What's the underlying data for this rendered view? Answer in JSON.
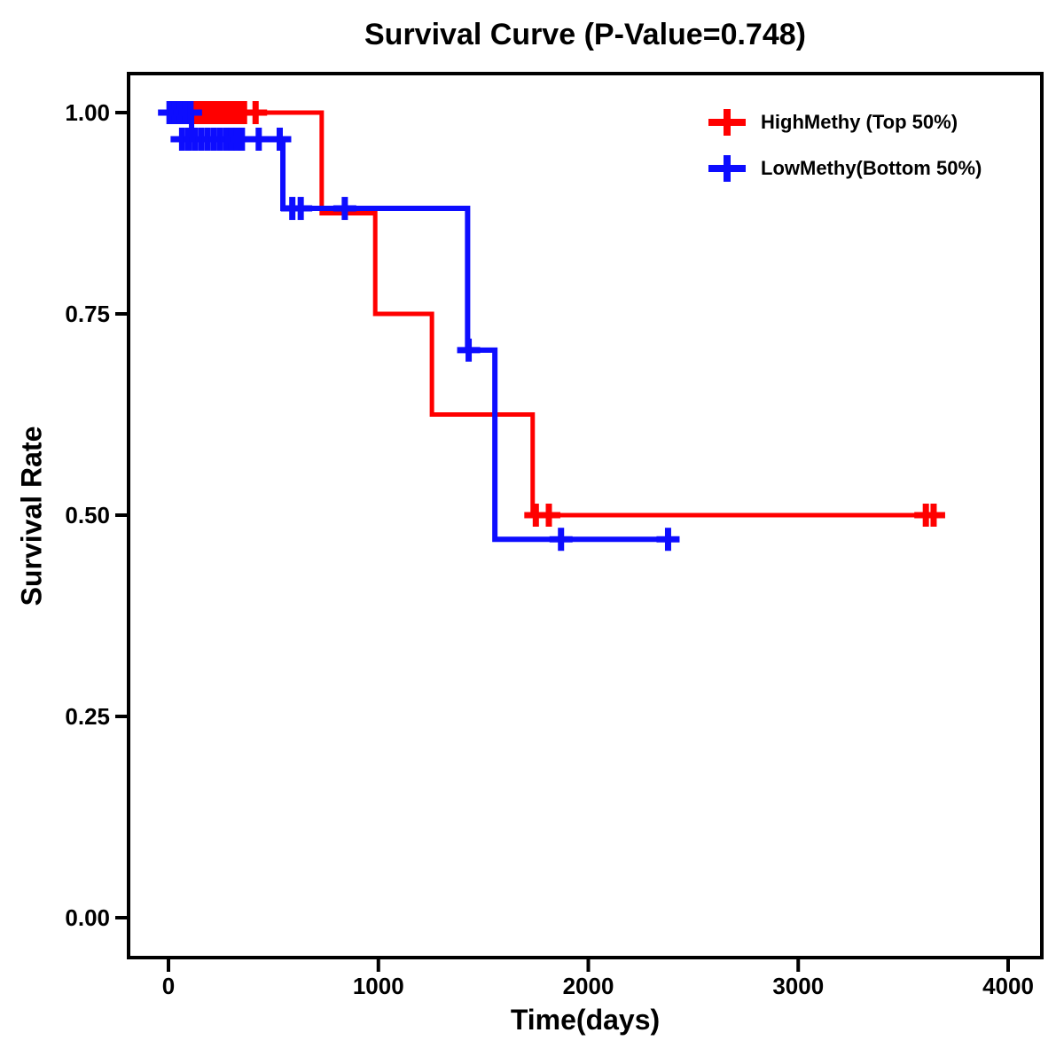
{
  "title": "Survival Curve (P-Value=0.748)",
  "axes": {
    "x": {
      "label": "Time(days)",
      "ticks": [
        {
          "value": 0,
          "label": "0"
        },
        {
          "value": 1000,
          "label": "1000"
        },
        {
          "value": 2000,
          "label": "2000"
        },
        {
          "value": 3000,
          "label": "3000"
        },
        {
          "value": 4000,
          "label": "4000"
        }
      ]
    },
    "y": {
      "label": "Survival Rate",
      "ticks": [
        {
          "value": 1.0,
          "label": "1.00"
        },
        {
          "value": 0.75,
          "label": "0.75"
        },
        {
          "value": 0.5,
          "label": "0.50"
        },
        {
          "value": 0.25,
          "label": "0.25"
        },
        {
          "value": 0.0,
          "label": "0.00"
        }
      ]
    }
  },
  "legend": [
    {
      "label": "HighMethy (Top 50%)",
      "color": "#FF0000",
      "marker": "plus-icon"
    },
    {
      "label": "LowMethy(Bottom 50%)",
      "color": "#0D0DFF",
      "marker": "plus-icon"
    }
  ],
  "chart_data": {
    "type": "line",
    "subtype": "kaplan-meier-step",
    "title": "Survival Curve (P-Value=0.748)",
    "p_value": 0.748,
    "xlabel": "Time(days)",
    "ylabel": "Survival Rate",
    "xlim": [
      0,
      4000
    ],
    "ylim": [
      0.0,
      1.0
    ],
    "grid": false,
    "legend_position": "top-right",
    "series": [
      {
        "name": "HighMethy (Top 50%)",
        "color": "#FF0000",
        "steps": [
          [
            0,
            1.0
          ],
          [
            730,
            0.875
          ],
          [
            985,
            0.75
          ],
          [
            1255,
            0.625
          ],
          [
            1735,
            0.5
          ]
        ],
        "end_time": 3690,
        "censor_marks": [
          [
            65,
            1.0
          ],
          [
            90,
            1.0
          ],
          [
            115,
            1.0
          ],
          [
            140,
            1.0
          ],
          [
            165,
            1.0
          ],
          [
            190,
            1.0
          ],
          [
            215,
            1.0
          ],
          [
            240,
            1.0
          ],
          [
            265,
            1.0
          ],
          [
            290,
            1.0
          ],
          [
            312,
            1.0
          ],
          [
            335,
            1.0
          ],
          [
            360,
            1.0
          ],
          [
            415,
            1.0
          ],
          [
            1750,
            0.5
          ],
          [
            1812,
            0.5
          ],
          [
            3608,
            0.5
          ],
          [
            3645,
            0.5
          ]
        ]
      },
      {
        "name": "LowMethy(Bottom 50%)",
        "color": "#0D0DFF",
        "steps": [
          [
            0,
            1.0
          ],
          [
            110,
            0.967
          ],
          [
            545,
            0.881
          ],
          [
            1425,
            0.705
          ],
          [
            1555,
            0.47
          ]
        ],
        "end_time": 2430,
        "censor_marks": [
          [
            5,
            1.0
          ],
          [
            30,
            1.0
          ],
          [
            55,
            1.0
          ],
          [
            80,
            1.0
          ],
          [
            105,
            1.0
          ],
          [
            65,
            0.967
          ],
          [
            95,
            0.967
          ],
          [
            125,
            0.967
          ],
          [
            155,
            0.967
          ],
          [
            185,
            0.967
          ],
          [
            215,
            0.967
          ],
          [
            245,
            0.967
          ],
          [
            275,
            0.967
          ],
          [
            300,
            0.967
          ],
          [
            325,
            0.967
          ],
          [
            350,
            0.967
          ],
          [
            430,
            0.967
          ],
          [
            530,
            0.967
          ],
          [
            590,
            0.881
          ],
          [
            630,
            0.881
          ],
          [
            840,
            0.881
          ],
          [
            1430,
            0.705
          ],
          [
            1870,
            0.47
          ],
          [
            2380,
            0.47
          ]
        ]
      }
    ]
  }
}
